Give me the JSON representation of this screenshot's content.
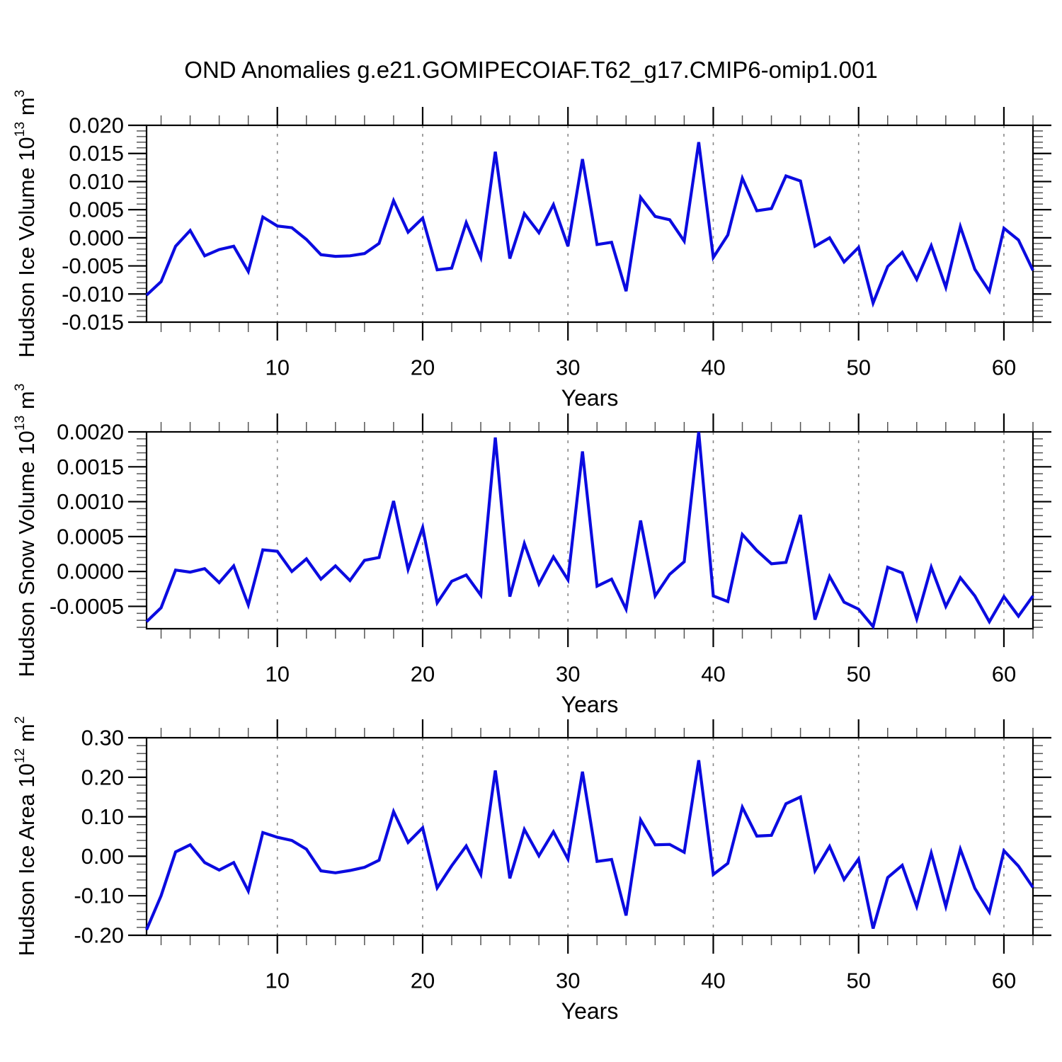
{
  "page_title": "OND Anomalies g.e21.GOMIPECOIAF.T62_g17.CMIP6-omip1.001",
  "colors": {
    "line": "#0b0be0",
    "frame": "#000000",
    "minor_tick": "#555555",
    "grid": "#888888"
  },
  "chart_data": [
    {
      "type": "line",
      "ylabel": "Hudson Ice Volume 10^13 m^3",
      "ylabel_parts": {
        "base": "Hudson Ice Volume 10",
        "exp": "13",
        "unit": "m",
        "unit_exp": "3"
      },
      "xlabel": "Years",
      "x_range": [
        1,
        62
      ],
      "x_major_ticks": [
        10,
        20,
        30,
        40,
        50,
        60
      ],
      "x_tick_labels": [
        "10",
        "20",
        "30",
        "40",
        "50",
        "60"
      ],
      "x_minor_step": 2,
      "ylim": [
        -0.015,
        0.02
      ],
      "y_major_step": 0.005,
      "y_minor_step": 0.001,
      "y_tick_labels": [
        "0.020",
        "0.015",
        "0.010",
        "0.005",
        "0.000",
        "-0.005",
        "-0.010",
        "-0.015"
      ],
      "grid": "vertical-dashed",
      "values": [
        -0.0102,
        -0.0078,
        -0.0015,
        0.0013,
        -0.0032,
        -0.0021,
        -0.0015,
        -0.006,
        0.0037,
        0.0021,
        0.0018,
        -0.0003,
        -0.003,
        -0.0033,
        -0.0032,
        -0.0028,
        -0.001,
        0.0066,
        0.001,
        0.0035,
        -0.0057,
        -0.0054,
        0.0027,
        -0.0035,
        0.0153,
        -0.0037,
        0.0043,
        0.0009,
        0.0059,
        -0.0015,
        0.014,
        -0.0012,
        -0.0008,
        -0.0095,
        0.0072,
        0.0038,
        0.0032,
        -0.0006,
        0.017,
        -0.0035,
        0.0005,
        0.0106,
        0.0048,
        0.0052,
        0.011,
        0.0101,
        -0.0015,
        0.0,
        -0.0043,
        -0.0017,
        -0.0116,
        -0.0051,
        -0.0026,
        -0.0074,
        -0.0014,
        -0.0088,
        0.002,
        -0.0056,
        -0.0095,
        0.0017,
        -0.0004,
        -0.0058
      ]
    },
    {
      "type": "line",
      "ylabel": "Hudson Snow Volume 10^13 m^3",
      "ylabel_parts": {
        "base": "Hudson Snow Volume 10",
        "exp": "13",
        "unit": "m",
        "unit_exp": "3"
      },
      "xlabel": "Years",
      "x_range": [
        1,
        62
      ],
      "x_major_ticks": [
        10,
        20,
        30,
        40,
        50,
        60
      ],
      "x_tick_labels": [
        "10",
        "20",
        "30",
        "40",
        "50",
        "60"
      ],
      "x_minor_step": 2,
      "ylim": [
        -0.00082,
        0.002
      ],
      "y_major_step": 0.0005,
      "y_minor_step": 0.0001,
      "y_tick_labels": [
        "0.0020",
        "0.0015",
        "0.0010",
        "0.0005",
        "0.0000",
        "-0.0005"
      ],
      "grid": "vertical-dashed",
      "values": [
        -0.00072,
        -0.00052,
        2e-05,
        -1e-05,
        4e-05,
        -0.00016,
        8e-05,
        -0.00048,
        0.00031,
        0.00029,
        0.0,
        0.00018,
        -0.00011,
        8e-05,
        -0.00013,
        0.00016,
        0.0002,
        0.00101,
        3e-05,
        0.00063,
        -0.00045,
        -0.00014,
        -5e-05,
        -0.00034,
        0.00192,
        -0.00036,
        0.0004,
        -0.00018,
        0.00021,
        -0.00012,
        0.00172,
        -0.00021,
        -0.00011,
        -0.00054,
        0.00073,
        -0.00035,
        -4e-05,
        0.00014,
        0.002,
        -0.00035,
        -0.00043,
        0.00053,
        0.0003,
        0.00011,
        0.00013,
        0.00081,
        -0.00069,
        -7e-05,
        -0.00044,
        -0.00054,
        -0.00079,
        6e-05,
        -2e-05,
        -0.00068,
        6e-05,
        -0.0005,
        -9e-05,
        -0.00035,
        -0.00072,
        -0.00036,
        -0.00064,
        -0.00035
      ]
    },
    {
      "type": "line",
      "ylabel": "Hudson Ice Area 10^12 m^2",
      "ylabel_parts": {
        "base": "Hudson Ice Area 10",
        "exp": "12",
        "unit": "m",
        "unit_exp": "2"
      },
      "xlabel": "Years",
      "x_range": [
        1,
        62
      ],
      "x_major_ticks": [
        10,
        20,
        30,
        40,
        50,
        60
      ],
      "x_tick_labels": [
        "10",
        "20",
        "30",
        "40",
        "50",
        "60"
      ],
      "x_minor_step": 2,
      "ylim": [
        -0.2,
        0.3
      ],
      "y_major_step": 0.1,
      "y_minor_step": 0.02,
      "y_tick_labels": [
        "0.30",
        "0.20",
        "0.10",
        "0.00",
        "-0.10",
        "-0.20"
      ],
      "grid": "vertical-dashed",
      "values": [
        -0.186,
        -0.1,
        0.011,
        0.029,
        -0.016,
        -0.035,
        -0.016,
        -0.088,
        0.06,
        0.048,
        0.04,
        0.018,
        -0.037,
        -0.042,
        -0.036,
        -0.028,
        -0.01,
        0.113,
        0.035,
        0.072,
        -0.08,
        -0.024,
        0.026,
        -0.046,
        0.217,
        -0.056,
        0.068,
        0.001,
        0.062,
        -0.007,
        0.214,
        -0.013,
        -0.008,
        -0.15,
        0.092,
        0.029,
        0.03,
        0.01,
        0.243,
        -0.046,
        -0.018,
        0.124,
        0.051,
        0.053,
        0.133,
        0.15,
        -0.037,
        0.025,
        -0.059,
        -0.007,
        -0.183,
        -0.054,
        -0.023,
        -0.127,
        0.008,
        -0.127,
        0.018,
        -0.081,
        -0.141,
        0.014,
        -0.025,
        -0.079
      ]
    }
  ]
}
